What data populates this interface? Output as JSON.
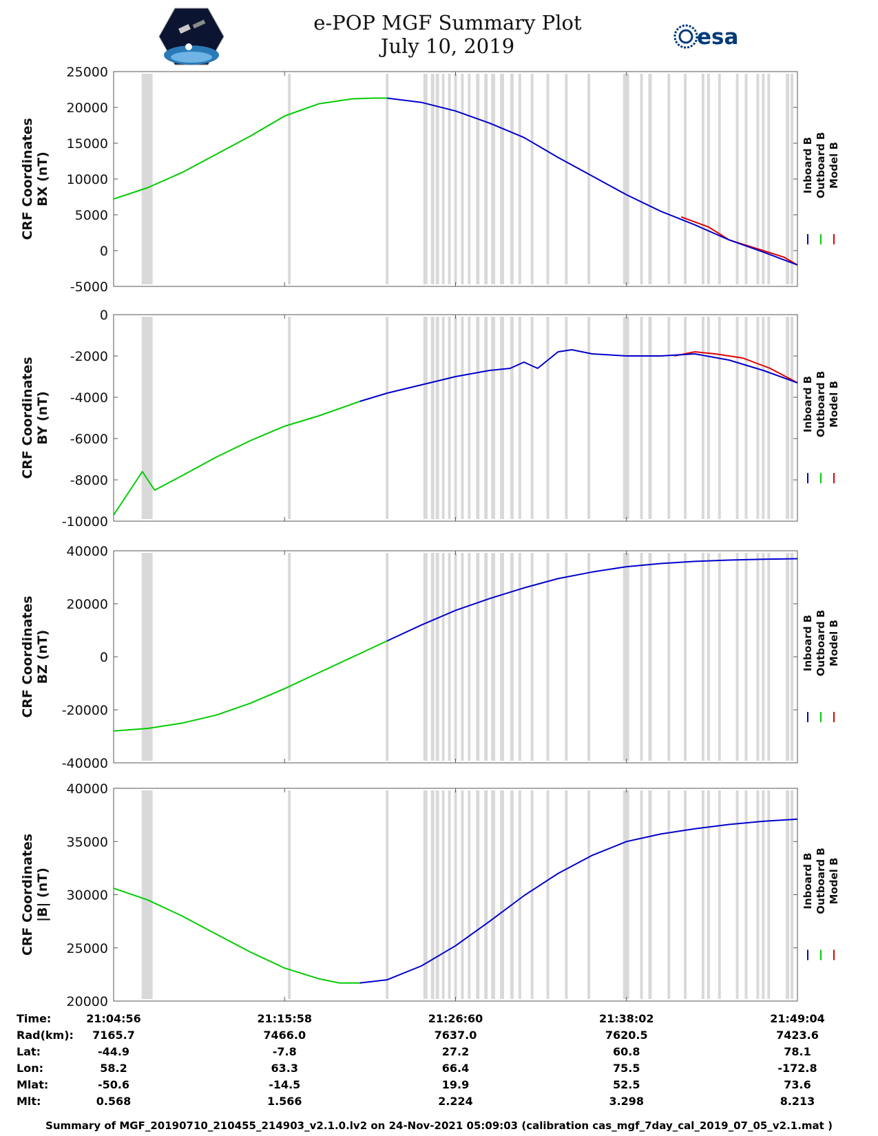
{
  "header": {
    "title_line1": "e-POP MGF Summary Plot",
    "title_line2": "July 10, 2019",
    "logo_left": "CASSIOPE",
    "logo_right": "esa"
  },
  "legend": {
    "labels": [
      "Inboard B",
      "Outboard B",
      "Model B"
    ],
    "colors": [
      "#0000cc",
      "#00cc00",
      "#dd0000"
    ]
  },
  "x_ticks": [
    "21:04:56",
    "21:15:58",
    "21:26:60",
    "21:38:02",
    "21:49:04"
  ],
  "gray_bands": [
    [
      0.041,
      0.057
    ],
    [
      0.255,
      0.259
    ],
    [
      0.398,
      0.402
    ],
    [
      0.453,
      0.459
    ],
    [
      0.464,
      0.469
    ],
    [
      0.471,
      0.476
    ],
    [
      0.48,
      0.484
    ],
    [
      0.489,
      0.493
    ],
    [
      0.498,
      0.502
    ],
    [
      0.508,
      0.512
    ],
    [
      0.518,
      0.522
    ],
    [
      0.53,
      0.535
    ],
    [
      0.542,
      0.547
    ],
    [
      0.552,
      0.558
    ],
    [
      0.565,
      0.571
    ],
    [
      0.58,
      0.585
    ],
    [
      0.592,
      0.596
    ],
    [
      0.61,
      0.614
    ],
    [
      0.633,
      0.637
    ],
    [
      0.66,
      0.664
    ],
    [
      0.693,
      0.697
    ],
    [
      0.745,
      0.754
    ],
    [
      0.77,
      0.774
    ],
    [
      0.782,
      0.787
    ],
    [
      0.81,
      0.814
    ],
    [
      0.834,
      0.838
    ],
    [
      0.86,
      0.864
    ],
    [
      0.868,
      0.872
    ],
    [
      0.884,
      0.888
    ],
    [
      0.91,
      0.914
    ],
    [
      0.923,
      0.927
    ],
    [
      0.94,
      0.944
    ],
    [
      0.948,
      0.952
    ],
    [
      0.956,
      0.96
    ],
    [
      0.983,
      0.988
    ],
    [
      0.99,
      0.994
    ]
  ],
  "chart_data": [
    {
      "type": "line",
      "ylabel_line1": "CRF Coordinates",
      "ylabel_line2": "BX (nT)",
      "ylim": [
        -5000,
        25000
      ],
      "yticks": [
        "25000",
        "20000",
        "15000",
        "10000",
        "5000",
        "0",
        "-5000"
      ],
      "series": [
        {
          "name": "Outboard B",
          "x": [
            0,
            0.05,
            0.1,
            0.2,
            0.25,
            0.3,
            0.35,
            0.38,
            0.4
          ],
          "values": [
            7200,
            8800,
            10900,
            16000,
            18800,
            20500,
            21200,
            21300,
            21300
          ]
        },
        {
          "name": "Inboard B",
          "x": [
            0.4,
            0.45,
            0.5,
            0.55,
            0.6,
            0.65,
            0.7,
            0.75,
            0.8,
            0.85,
            0.9,
            0.95,
            1.0
          ],
          "values": [
            21300,
            20700,
            19500,
            17800,
            15800,
            13000,
            10400,
            7800,
            5500,
            3600,
            1500,
            -200,
            -2000
          ]
        },
        {
          "name": "Model B",
          "x": [
            0.83,
            0.87,
            0.9,
            0.95,
            0.98,
            1.0
          ],
          "values": [
            4700,
            3300,
            1500,
            0,
            -900,
            -2000
          ]
        }
      ]
    },
    {
      "type": "line",
      "ylabel_line1": "CRF Coordinates",
      "ylabel_line2": "BY (nT)",
      "ylim": [
        -10000,
        0
      ],
      "yticks": [
        "0",
        "-2000",
        "-4000",
        "-6000",
        "-8000",
        "-10000"
      ],
      "series": [
        {
          "name": "Outboard B",
          "x": [
            0,
            0.02,
            0.042,
            0.06,
            0.1,
            0.15,
            0.2,
            0.25,
            0.3,
            0.36
          ],
          "values": [
            -9700,
            -8700,
            -7600,
            -8500,
            -7800,
            -6900,
            -6100,
            -5400,
            -4900,
            -4200
          ]
        },
        {
          "name": "Inboard B",
          "x": [
            0.36,
            0.4,
            0.45,
            0.5,
            0.55,
            0.58,
            0.6,
            0.62,
            0.65,
            0.67,
            0.7,
            0.75,
            0.8,
            0.85,
            0.9,
            0.95,
            1.0
          ],
          "values": [
            -4200,
            -3800,
            -3400,
            -3000,
            -2700,
            -2600,
            -2300,
            -2600,
            -1800,
            -1700,
            -1900,
            -2000,
            -2000,
            -1900,
            -2200,
            -2700,
            -3300
          ]
        },
        {
          "name": "Model B",
          "x": [
            0.82,
            0.85,
            0.88,
            0.92,
            0.96,
            1.0
          ],
          "values": [
            -2000,
            -1800,
            -1900,
            -2100,
            -2600,
            -3300
          ]
        }
      ]
    },
    {
      "type": "line",
      "ylabel_line1": "CRF Coordinates",
      "ylabel_line2": "BZ (nT)",
      "ylim": [
        -40000,
        40000
      ],
      "yticks": [
        "40000",
        "20000",
        "0",
        "-20000",
        "-40000"
      ],
      "series": [
        {
          "name": "Outboard B",
          "x": [
            0,
            0.05,
            0.1,
            0.15,
            0.2,
            0.25,
            0.3,
            0.35,
            0.4
          ],
          "values": [
            -28000,
            -27000,
            -25000,
            -22000,
            -17500,
            -12000,
            -6000,
            0,
            6000
          ]
        },
        {
          "name": "Inboard B",
          "x": [
            0.4,
            0.45,
            0.5,
            0.55,
            0.6,
            0.65,
            0.7,
            0.75,
            0.8,
            0.85,
            0.9,
            0.95,
            1.0
          ],
          "values": [
            6000,
            12000,
            17500,
            22000,
            26000,
            29500,
            32000,
            34000,
            35200,
            36000,
            36500,
            36800,
            37000
          ]
        }
      ]
    },
    {
      "type": "line",
      "ylabel_line1": "CRF Coordinates",
      "ylabel_line2": "|B| (nT)",
      "ylim": [
        20000,
        40000
      ],
      "yticks": [
        "40000",
        "35000",
        "30000",
        "25000",
        "20000"
      ],
      "series": [
        {
          "name": "Outboard B",
          "x": [
            0,
            0.05,
            0.1,
            0.15,
            0.2,
            0.25,
            0.3,
            0.33,
            0.36
          ],
          "values": [
            30600,
            29500,
            28000,
            26300,
            24600,
            23100,
            22100,
            21700,
            21700
          ]
        },
        {
          "name": "Inboard B",
          "x": [
            0.36,
            0.4,
            0.45,
            0.5,
            0.55,
            0.6,
            0.65,
            0.7,
            0.75,
            0.8,
            0.85,
            0.9,
            0.95,
            1.0
          ],
          "values": [
            21700,
            22000,
            23300,
            25200,
            27500,
            29900,
            32000,
            33700,
            35000,
            35700,
            36200,
            36600,
            36900,
            37100
          ]
        }
      ]
    }
  ],
  "info_table": {
    "labels": [
      "Time:",
      "Rad(km):",
      "Lat:",
      "Lon:",
      "Mlat:",
      "Mlt:"
    ],
    "columns": [
      [
        "21:04:56",
        "7165.7",
        "-44.9",
        "58.2",
        "-50.6",
        "0.568"
      ],
      [
        "21:15:58",
        "7466.0",
        "-7.8",
        "63.3",
        "-14.5",
        "1.566"
      ],
      [
        "21:26:60",
        "7637.0",
        "27.2",
        "66.4",
        "19.9",
        "2.224"
      ],
      [
        "21:38:02",
        "7620.5",
        "60.8",
        "75.5",
        "52.5",
        "3.298"
      ],
      [
        "21:49:04",
        "7423.6",
        "78.1",
        "-172.8",
        "73.6",
        "8.213"
      ]
    ]
  },
  "footer": "Summary of MGF_20190710_210455_214903_v2.1.0.lv2 on 24-Nov-2021 05:09:03 (calibration cas_mgf_7day_cal_2019_07_05_v2.1.mat )"
}
